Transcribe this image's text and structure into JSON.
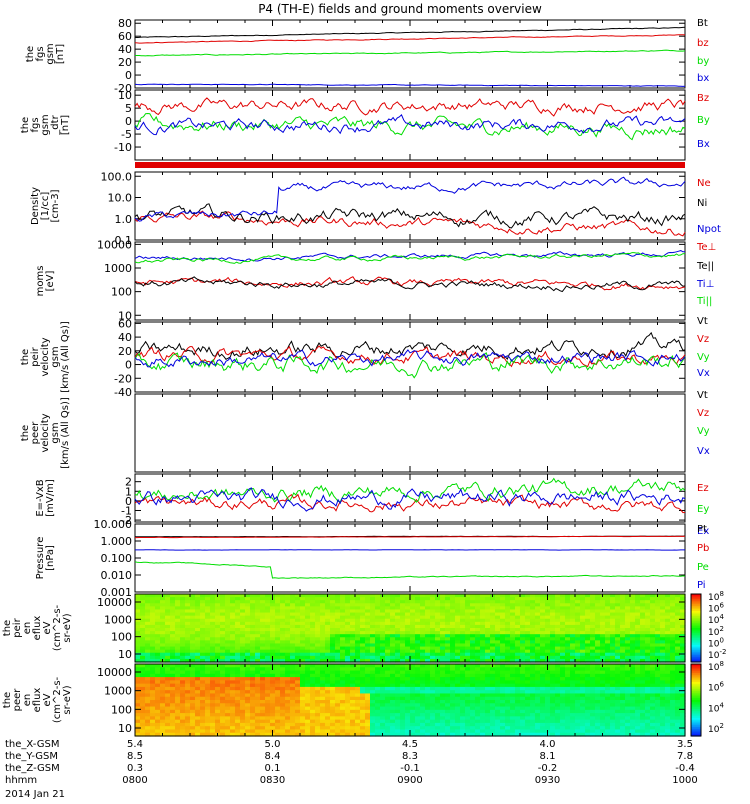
{
  "title": "P4 (TH-E) fields and ground moments overview",
  "date_label": "2014 Jan 21",
  "ephemeris": {
    "rows": [
      {
        "label": "the_X-GSM",
        "values": [
          "5.4",
          "5.0",
          "4.5",
          "4.0",
          "3.5"
        ]
      },
      {
        "label": "the_Y-GSM",
        "values": [
          "8.5",
          "8.4",
          "8.3",
          "8.1",
          "7.8"
        ]
      },
      {
        "label": "the_Z-GSM",
        "values": [
          "0.3",
          "0.1",
          "-0.1",
          "-0.2",
          "-0.4"
        ]
      },
      {
        "label": "hhmm",
        "values": [
          "0800",
          "0830",
          "0900",
          "0930",
          "1000"
        ]
      }
    ]
  },
  "colors": {
    "black": "#000000",
    "red": "#e00000",
    "green": "#00dd00",
    "blue": "#0000dd"
  },
  "chart_data": [
    {
      "type": "line",
      "ylabel": [
        "the",
        "fgs",
        "gsm",
        "[nT]"
      ],
      "yticks": [
        "80",
        "60",
        "40",
        "20",
        "0",
        "-20"
      ],
      "ylim": [
        -20,
        85
      ],
      "x": [
        "0800",
        "0830",
        "0900",
        "0930",
        "1000"
      ],
      "series": [
        {
          "name": "Bt",
          "color": "#000000",
          "start": 58,
          "end": 73,
          "noise": 0.4
        },
        {
          "name": "bz",
          "color": "#e00000",
          "start": 50,
          "end": 62,
          "noise": 0.4
        },
        {
          "name": "by",
          "color": "#00dd00",
          "start": 30,
          "end": 38,
          "noise": 0.5
        },
        {
          "name": "bx",
          "color": "#0000dd",
          "start": -14,
          "end": -17,
          "noise": 0.3
        }
      ]
    },
    {
      "type": "line",
      "ylabel": [
        "the",
        "fgs",
        "gsm",
        "_dtr",
        "[nT]"
      ],
      "yticks": [
        "10",
        "5",
        "0",
        "-5",
        "-10"
      ],
      "ylim": [
        -15,
        12
      ],
      "x": [
        "0800",
        "0830",
        "0900",
        "0930",
        "1000"
      ],
      "series": [
        {
          "name": "Bz",
          "color": "#e00000",
          "start": 6,
          "end": 6,
          "noise": 1.5
        },
        {
          "name": "By",
          "color": "#00dd00",
          "start": -1,
          "end": -3,
          "noise": 1.8
        },
        {
          "name": "Bx",
          "color": "#0000dd",
          "start": -2,
          "end": -1,
          "noise": 1.5
        }
      ]
    },
    {
      "type": "line",
      "ylabel": [
        "Density",
        "[1/cc]",
        "[cm-3]"
      ],
      "yticks": [
        "100.0",
        "10.0",
        "1.0",
        "0.1"
      ],
      "ylim_log10": [
        -1,
        2.2
      ],
      "x": [
        "0800",
        "0830",
        "0900",
        "0930",
        "1000"
      ],
      "series": [
        {
          "name": "Ne",
          "color": "#e00000",
          "start": 1.3,
          "end": 0.3,
          "noise": 0.15
        },
        {
          "name": "Ni",
          "color": "#000000",
          "start": 1.4,
          "end": 1.0,
          "noise": 0.2
        },
        {
          "name": "Npot",
          "color": "#0000dd",
          "start": 1.2,
          "end": 45,
          "noise": 0.12
        }
      ]
    },
    {
      "type": "line",
      "ylabel": [
        "moms",
        "[eV]"
      ],
      "yticks": [
        "10000",
        "1000",
        "100",
        "10"
      ],
      "ylim_log10": [
        0.8,
        4.1
      ],
      "x": [
        "0800",
        "0830",
        "0900",
        "0930",
        "1000"
      ],
      "series": [
        {
          "name": "Te⊥",
          "color": "#e00000",
          "start": 250,
          "end": 200,
          "noise": 0.1
        },
        {
          "name": "Te||",
          "color": "#000000",
          "start": 230,
          "end": 180,
          "noise": 0.1
        },
        {
          "name": "Ti⊥",
          "color": "#0000dd",
          "start": 2500,
          "end": 4000,
          "noise": 0.06
        },
        {
          "name": "Ti||",
          "color": "#00dd00",
          "start": 2000,
          "end": 3500,
          "noise": 0.06
        }
      ]
    },
    {
      "type": "line",
      "ylabel": [
        "the",
        "peir",
        "velocity",
        "gsm",
        "[km/s (All Qs)]"
      ],
      "yticks": [
        "60",
        "40",
        "20",
        "0",
        "-20",
        "-40"
      ],
      "ylim": [
        -40,
        62
      ],
      "x": [
        "0800",
        "0830",
        "0900",
        "0930",
        "1000"
      ],
      "series": [
        {
          "name": "Vt",
          "color": "#000000",
          "start": 20,
          "end": 28,
          "noise": 7
        },
        {
          "name": "Vz",
          "color": "#e00000",
          "start": 15,
          "end": 8,
          "noise": 6
        },
        {
          "name": "Vy",
          "color": "#00dd00",
          "start": 0,
          "end": 5,
          "noise": 8
        },
        {
          "name": "Vx",
          "color": "#0000dd",
          "start": 5,
          "end": 12,
          "noise": 6
        }
      ]
    },
    {
      "type": "line",
      "ylabel": [
        "the",
        "peer",
        "velocity",
        "gsm",
        "[km/s (All Qs)]"
      ],
      "yticks": [],
      "x": [
        "0800",
        "0830",
        "0900",
        "0930",
        "1000"
      ],
      "series": [
        {
          "name": "Vt",
          "color": "#000000"
        },
        {
          "name": "Vz",
          "color": "#e00000"
        },
        {
          "name": "Vy",
          "color": "#00dd00"
        },
        {
          "name": "Vx",
          "color": "#0000dd"
        }
      ]
    },
    {
      "type": "line",
      "ylabel": [
        "E=-VxB",
        "[mV/m]"
      ],
      "yticks": [
        "2",
        "1",
        "0",
        "-1",
        "-2"
      ],
      "ylim": [
        -2.2,
        2.8
      ],
      "x": [
        "0800",
        "0830",
        "0900",
        "0930",
        "1000"
      ],
      "series": [
        {
          "name": "Ez",
          "color": "#e00000",
          "start": -0.2,
          "end": -0.5,
          "noise": 0.4
        },
        {
          "name": "Ey",
          "color": "#00dd00",
          "start": 0.5,
          "end": 1.5,
          "noise": 0.5
        },
        {
          "name": "Ex",
          "color": "#0000dd",
          "start": 0.2,
          "end": 0.4,
          "noise": 0.5
        }
      ]
    },
    {
      "type": "line",
      "ylabel": [
        "Pressure",
        "[nPa]"
      ],
      "yticks": [
        "10.000",
        "1.000",
        "0.100",
        "0.010",
        "0.001"
      ],
      "ylim_log10": [
        -3,
        1
      ],
      "x": [
        "0800",
        "0830",
        "0900",
        "0930",
        "1000"
      ],
      "series": [
        {
          "name": "Pt",
          "color": "#000000",
          "start": 1.8,
          "end": 1.9,
          "noise": 0.005
        },
        {
          "name": "Pb",
          "color": "#e00000",
          "start": 1.6,
          "end": 1.9,
          "noise": 0.005
        },
        {
          "name": "Pe",
          "color": "#00dd00",
          "start": 0.06,
          "end": 0.008,
          "noise": 0.02
        },
        {
          "name": "Pi",
          "color": "#0000dd",
          "start": 0.3,
          "end": 0.3,
          "noise": 0.005
        }
      ]
    },
    {
      "type": "heatmap",
      "ylabel": [
        "the",
        "peir",
        "en",
        "eflux",
        "eV",
        "(cm^2-s-",
        "sr-eV)"
      ],
      "yticks": [
        "10000",
        "1000",
        "100",
        "10"
      ],
      "colorbar_ticks": [
        "10^8",
        "10^6",
        "10^4",
        "10^2",
        "10^0",
        "10^-2"
      ],
      "x": [
        "0800",
        "0830",
        "0900",
        "0930",
        "1000"
      ]
    },
    {
      "type": "heatmap",
      "ylabel": [
        "the",
        "peer",
        "en",
        "eflux",
        "eV",
        "(cm^2-s-",
        "sr-eV)"
      ],
      "yticks": [
        "10000",
        "1000",
        "100",
        "10"
      ],
      "colorbar_ticks": [
        "10^8",
        "10^6",
        "10^4",
        "10^2"
      ],
      "x": [
        "0800",
        "0830",
        "0900",
        "0930",
        "1000"
      ]
    }
  ]
}
